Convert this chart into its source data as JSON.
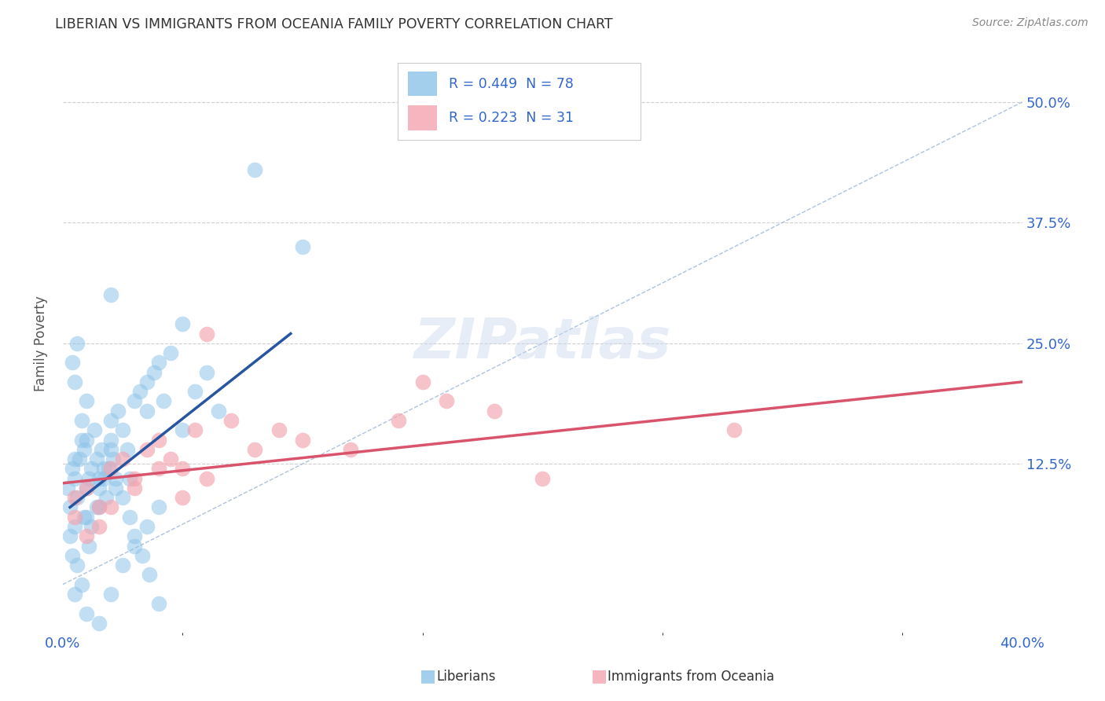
{
  "title": "LIBERIAN VS IMMIGRANTS FROM OCEANIA FAMILY POVERTY CORRELATION CHART",
  "source": "Source: ZipAtlas.com",
  "xlim": [
    0.0,
    40.0
  ],
  "ylim": [
    -5.0,
    55.0
  ],
  "ylabel": "Family Poverty",
  "legend_label1": "Liberians",
  "legend_label2": "Immigrants from Oceania",
  "R1": 0.449,
  "N1": 78,
  "R2": 0.223,
  "N2": 31,
  "color_blue": "#8ec4e8",
  "color_pink": "#f4a4b0",
  "color_line_blue": "#2855a0",
  "color_line_pink": "#d9536c",
  "color_ref_line": "#a0b8d8",
  "color_title": "#333333",
  "color_stat": "#3366cc",
  "background_color": "#ffffff",
  "ytick_vals": [
    12.5,
    25.0,
    37.5,
    50.0
  ],
  "blue_scatter_x": [
    0.2,
    0.3,
    0.4,
    0.5,
    0.5,
    0.6,
    0.7,
    0.8,
    0.9,
    1.0,
    1.0,
    1.1,
    1.2,
    1.3,
    1.4,
    1.5,
    1.6,
    1.7,
    1.8,
    1.9,
    2.0,
    2.0,
    2.1,
    2.2,
    2.3,
    2.5,
    2.7,
    2.8,
    3.0,
    3.2,
    3.5,
    3.5,
    3.8,
    4.0,
    4.2,
    4.5,
    5.0,
    5.5,
    6.0,
    6.5,
    0.3,
    0.4,
    0.5,
    0.6,
    0.8,
    0.9,
    1.0,
    1.1,
    1.2,
    1.4,
    1.5,
    1.7,
    2.0,
    2.2,
    2.5,
    2.8,
    3.0,
    3.3,
    3.6,
    4.0,
    1.5,
    2.0,
    2.5,
    3.0,
    3.5,
    4.0,
    0.5,
    1.0,
    1.5,
    0.8,
    1.0,
    0.5,
    0.4,
    0.6,
    5.0,
    8.0,
    10.0,
    2.0
  ],
  "blue_scatter_y": [
    10.0,
    8.0,
    12.0,
    11.0,
    6.0,
    9.0,
    13.0,
    15.0,
    14.0,
    7.0,
    10.0,
    11.0,
    12.0,
    16.0,
    13.0,
    8.0,
    14.0,
    11.0,
    9.0,
    12.0,
    15.0,
    17.0,
    13.0,
    10.0,
    18.0,
    16.0,
    14.0,
    11.0,
    19.0,
    20.0,
    21.0,
    18.0,
    22.0,
    23.0,
    19.0,
    24.0,
    16.0,
    20.0,
    22.0,
    18.0,
    5.0,
    3.0,
    -1.0,
    2.0,
    0.0,
    7.0,
    -3.0,
    4.0,
    6.0,
    8.0,
    10.0,
    12.0,
    14.0,
    11.0,
    9.0,
    7.0,
    5.0,
    3.0,
    1.0,
    -2.0,
    -4.0,
    -1.0,
    2.0,
    4.0,
    6.0,
    8.0,
    13.0,
    15.0,
    11.0,
    17.0,
    19.0,
    21.0,
    23.0,
    25.0,
    27.0,
    43.0,
    35.0,
    30.0
  ],
  "pink_scatter_x": [
    0.5,
    1.0,
    1.5,
    2.0,
    2.5,
    3.0,
    3.5,
    4.0,
    4.5,
    5.0,
    5.5,
    6.0,
    7.0,
    8.0,
    9.0,
    10.0,
    12.0,
    14.0,
    16.0,
    18.0,
    0.5,
    1.0,
    1.5,
    2.0,
    3.0,
    4.0,
    5.0,
    6.0,
    20.0,
    15.0,
    28.0
  ],
  "pink_scatter_y": [
    9.0,
    10.0,
    8.0,
    12.0,
    13.0,
    11.0,
    14.0,
    15.0,
    13.0,
    12.0,
    16.0,
    26.0,
    17.0,
    14.0,
    16.0,
    15.0,
    14.0,
    17.0,
    19.0,
    18.0,
    7.0,
    5.0,
    6.0,
    8.0,
    10.0,
    12.0,
    9.0,
    11.0,
    11.0,
    21.0,
    16.0
  ],
  "trendline1_x": [
    0.3,
    9.5
  ],
  "trendline1_y": [
    8.0,
    26.0
  ],
  "trendline2_x": [
    0.0,
    40.0
  ],
  "trendline2_y": [
    10.5,
    21.0
  ],
  "refline_x": [
    0.0,
    40.0
  ],
  "refline_y": [
    0.0,
    50.0
  ]
}
